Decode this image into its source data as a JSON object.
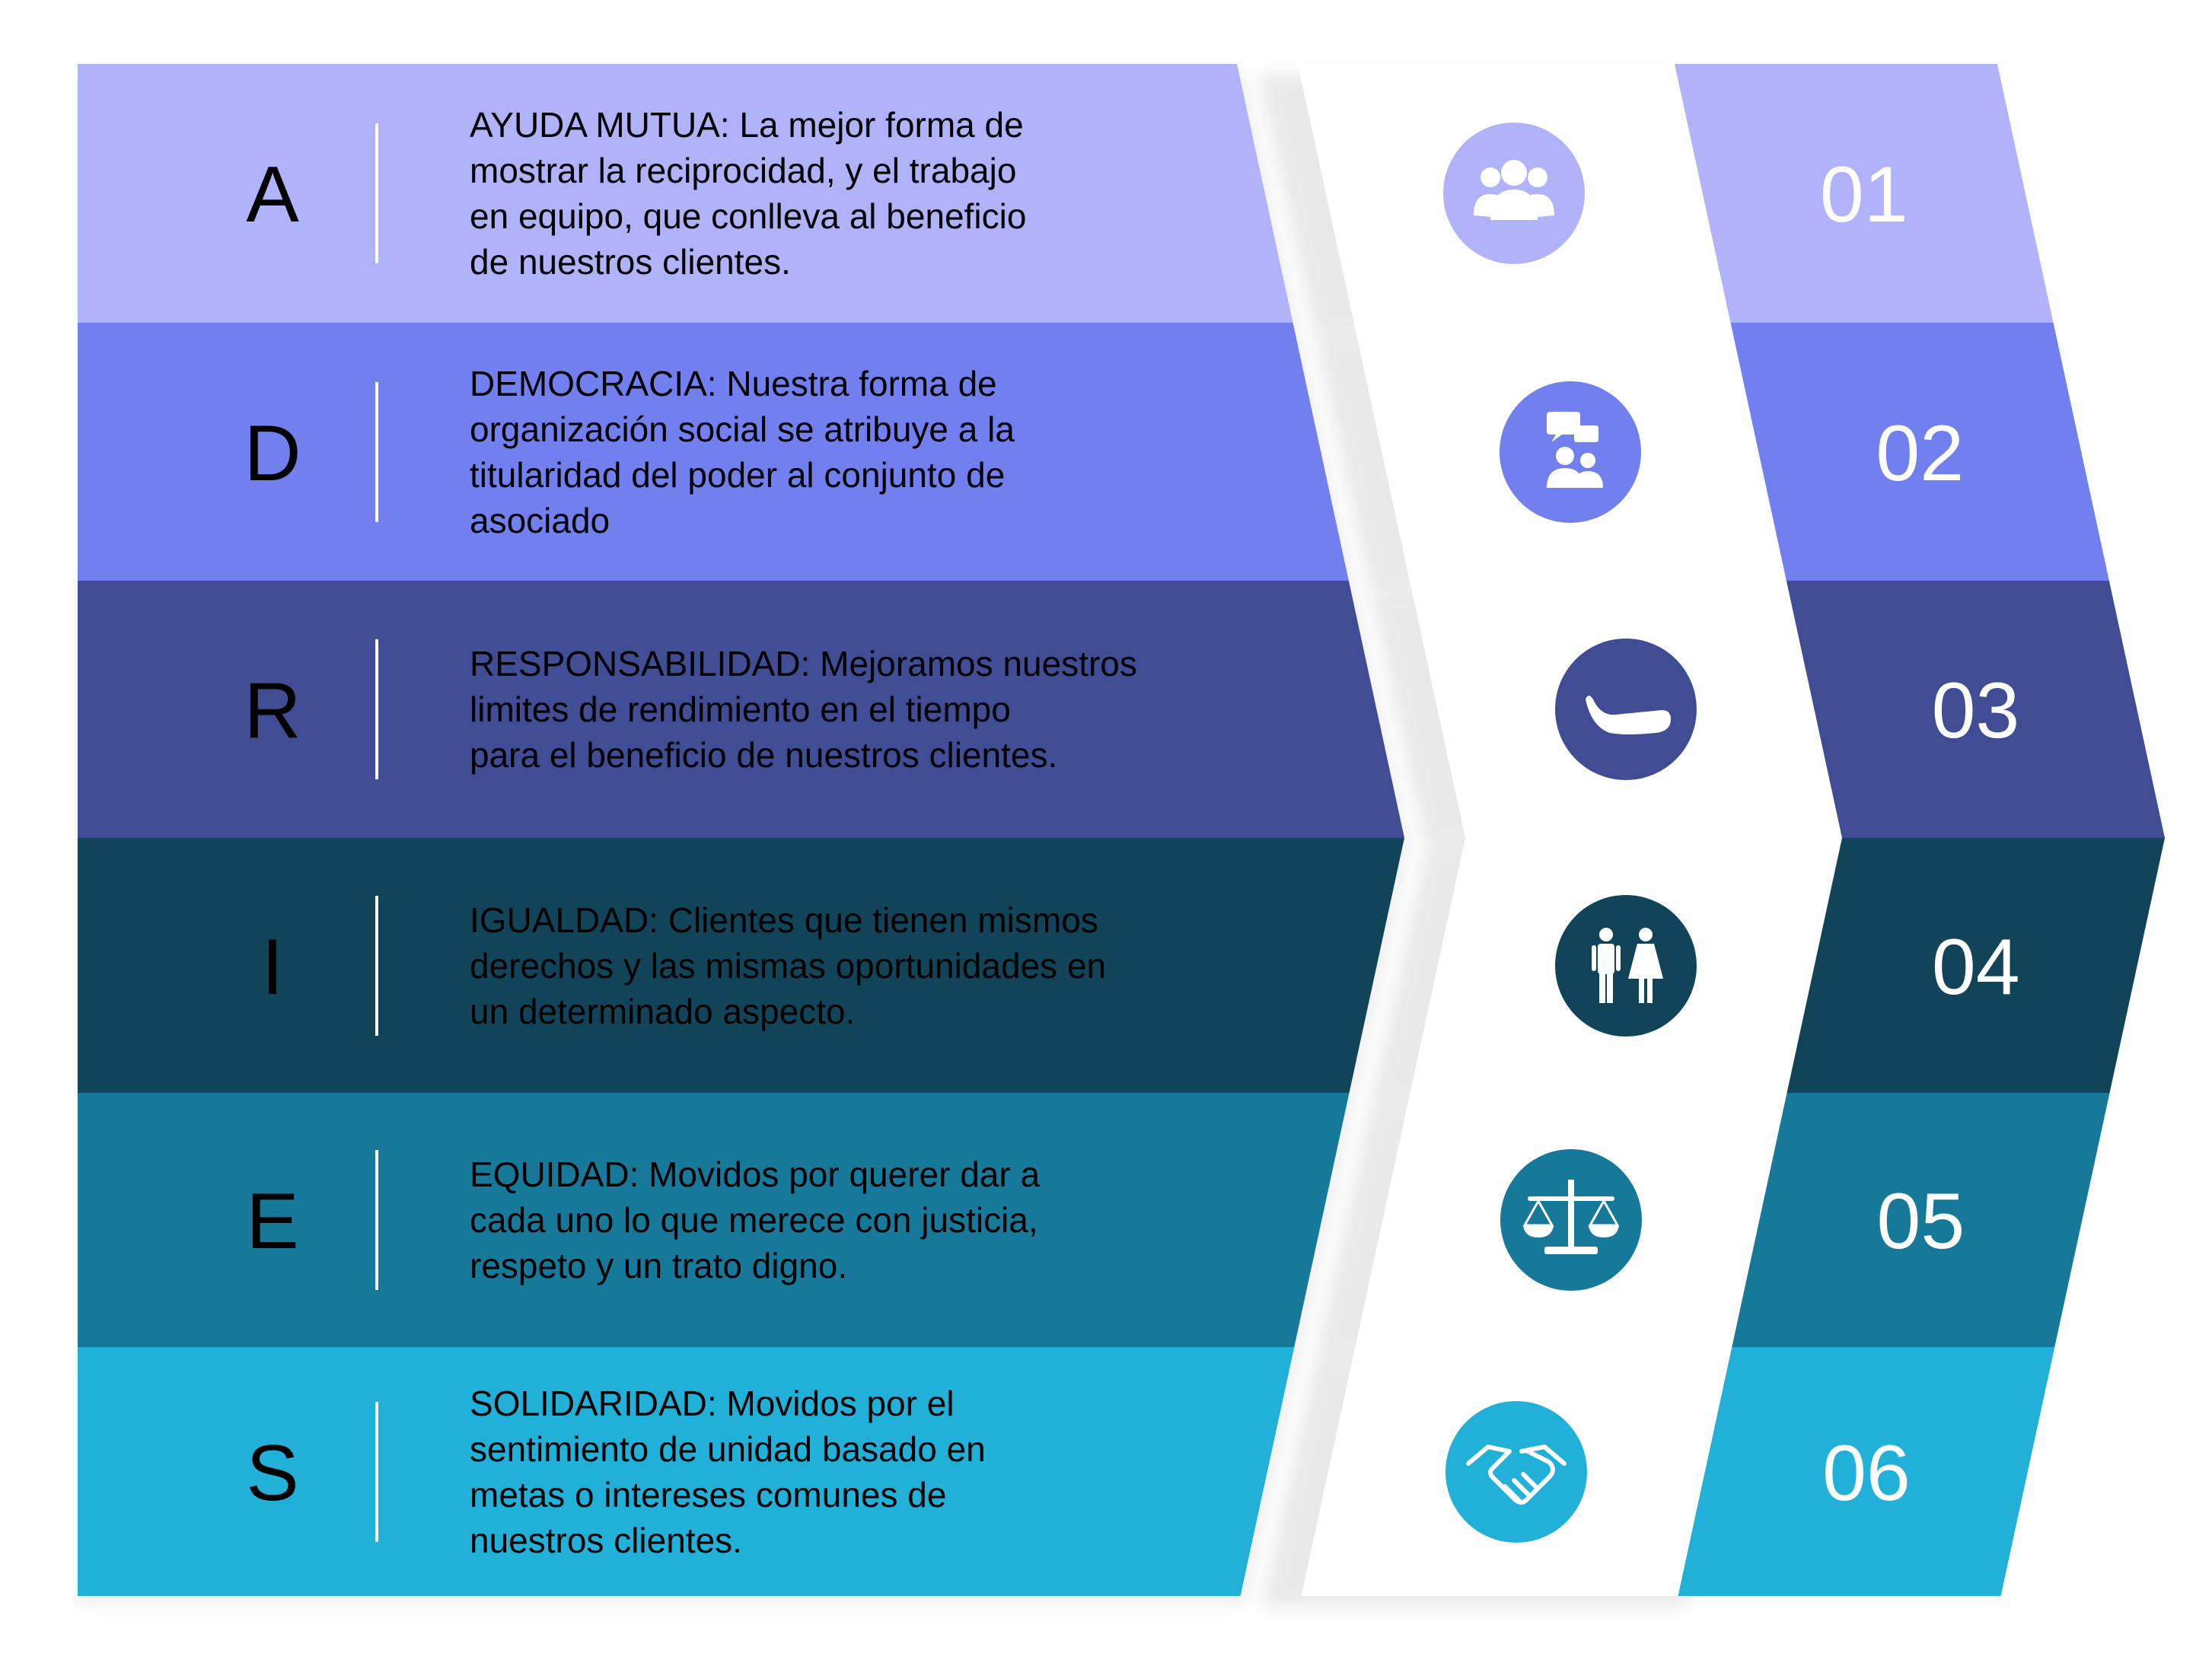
{
  "colors": {
    "row_colors": [
      "#B0B3FA",
      "#7280EF",
      "#404C94",
      "#124459",
      "#16799A",
      "#21B0D8"
    ],
    "white_panel": "#FFFFFF",
    "shadow": "#D8D8D8"
  },
  "values": [
    {
      "letter": "A",
      "label": "AYUDA MUTUA:",
      "text": "La mejor forma de mostrar la reciprocidad, y el trabajo en equipo, que conlleva al beneficio de nuestros clientes.",
      "lines": [
        "AYUDA MUTUA: La mejor forma de",
        "mostrar la reciprocidad, y el trabajo",
        "en equipo, que conlleva al beneficio",
        "de nuestros clientes."
      ],
      "number": "01",
      "icon": "group-users-icon",
      "letter_color": "#000000",
      "text_color": "#000000"
    },
    {
      "letter": "D",
      "label": "DEMOCRACIA:",
      "text": "Nuestra forma de organización social se atribuye a la titularidad del poder al conjunto de asociado",
      "lines": [
        "DEMOCRACIA: Nuestra forma de",
        "organización social se atribuye a la",
        "titularidad del poder al conjunto de",
        "asociado"
      ],
      "number": "02",
      "icon": "discussion-icon",
      "letter_color": "#000000",
      "text_color": "#000000"
    },
    {
      "letter": "R",
      "label": "RESPONSABILIDAD:",
      "text": "Mejoramos nuestros limites de rendimiento en el tiempo para el beneficio de nuestros clientes.",
      "lines": [
        "RESPONSABILIDAD: Mejoramos nuestros",
        "limites de rendimiento en el tiempo",
        "para el beneficio de nuestros clientes."
      ],
      "number": "03",
      "icon": "open-hand-icon",
      "letter_color": "#000000",
      "text_color": "#000000"
    },
    {
      "letter": "I",
      "label": "IGUALDAD:",
      "text": "Clientes que tienen mismos derechos y las mismas oportunidades en un determinado aspecto.",
      "lines": [
        "IGUALDAD: Clientes que tienen mismos",
        "derechos y las mismas oportunidades en",
        "un determinado aspecto."
      ],
      "number": "04",
      "icon": "man-woman-icon",
      "letter_color": "#000000",
      "text_color": "#000000"
    },
    {
      "letter": "E",
      "label": "EQUIDAD:",
      "text": "Movidos por querer dar a cada uno lo que merece con justicia, respeto y un trato digno.",
      "lines": [
        "EQUIDAD: Movidos por querer dar a",
        "cada uno lo que merece con justicia,",
        "respeto y un trato digno."
      ],
      "number": "05",
      "icon": "scales-icon",
      "letter_color": "#000000",
      "text_color": "#000000"
    },
    {
      "letter": "S",
      "label": "SOLIDARIDAD:",
      "text": "Movidos por el sentimiento de unidad basado en metas o intereses comunes de nuestros clientes.",
      "lines": [
        "SOLIDARIDAD: Movidos por el",
        "sentimiento de unidad basado en",
        "metas o intereses comunes de",
        "nuestros clientes."
      ],
      "number": "06",
      "icon": "handshake-icon",
      "letter_color": "#000000",
      "text_color": "#000000"
    }
  ]
}
